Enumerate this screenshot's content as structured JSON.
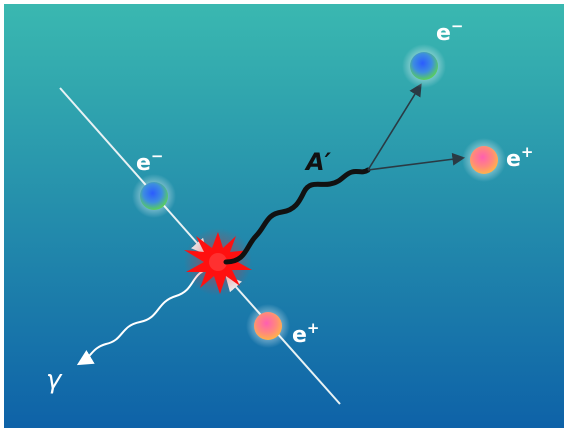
{
  "diagram": {
    "particles": {
      "electron_in": {
        "symbol": "e",
        "charge": "−"
      },
      "positron_in": {
        "symbol": "e",
        "charge": "+"
      },
      "electron_out": {
        "symbol": "e",
        "charge": "−"
      },
      "positron_out": {
        "symbol": "e",
        "charge": "+"
      }
    },
    "mediator": {
      "label": "A′"
    },
    "photon": {
      "label": "γ"
    },
    "colors": {
      "background_top": "#3ab8b0",
      "background_bottom": "#0e62a8",
      "border": "#ffffff",
      "track": "#e8f2f4",
      "outgoing_track": "#2a3a44",
      "wavy_mediator": "#111111",
      "collision": "#ff1010",
      "electron_core": "#2b5cff",
      "electron_edge": "#5ad05a",
      "positron_core": "#ff5fb0",
      "positron_edge": "#ffb24a",
      "label": "#ffffff"
    }
  }
}
